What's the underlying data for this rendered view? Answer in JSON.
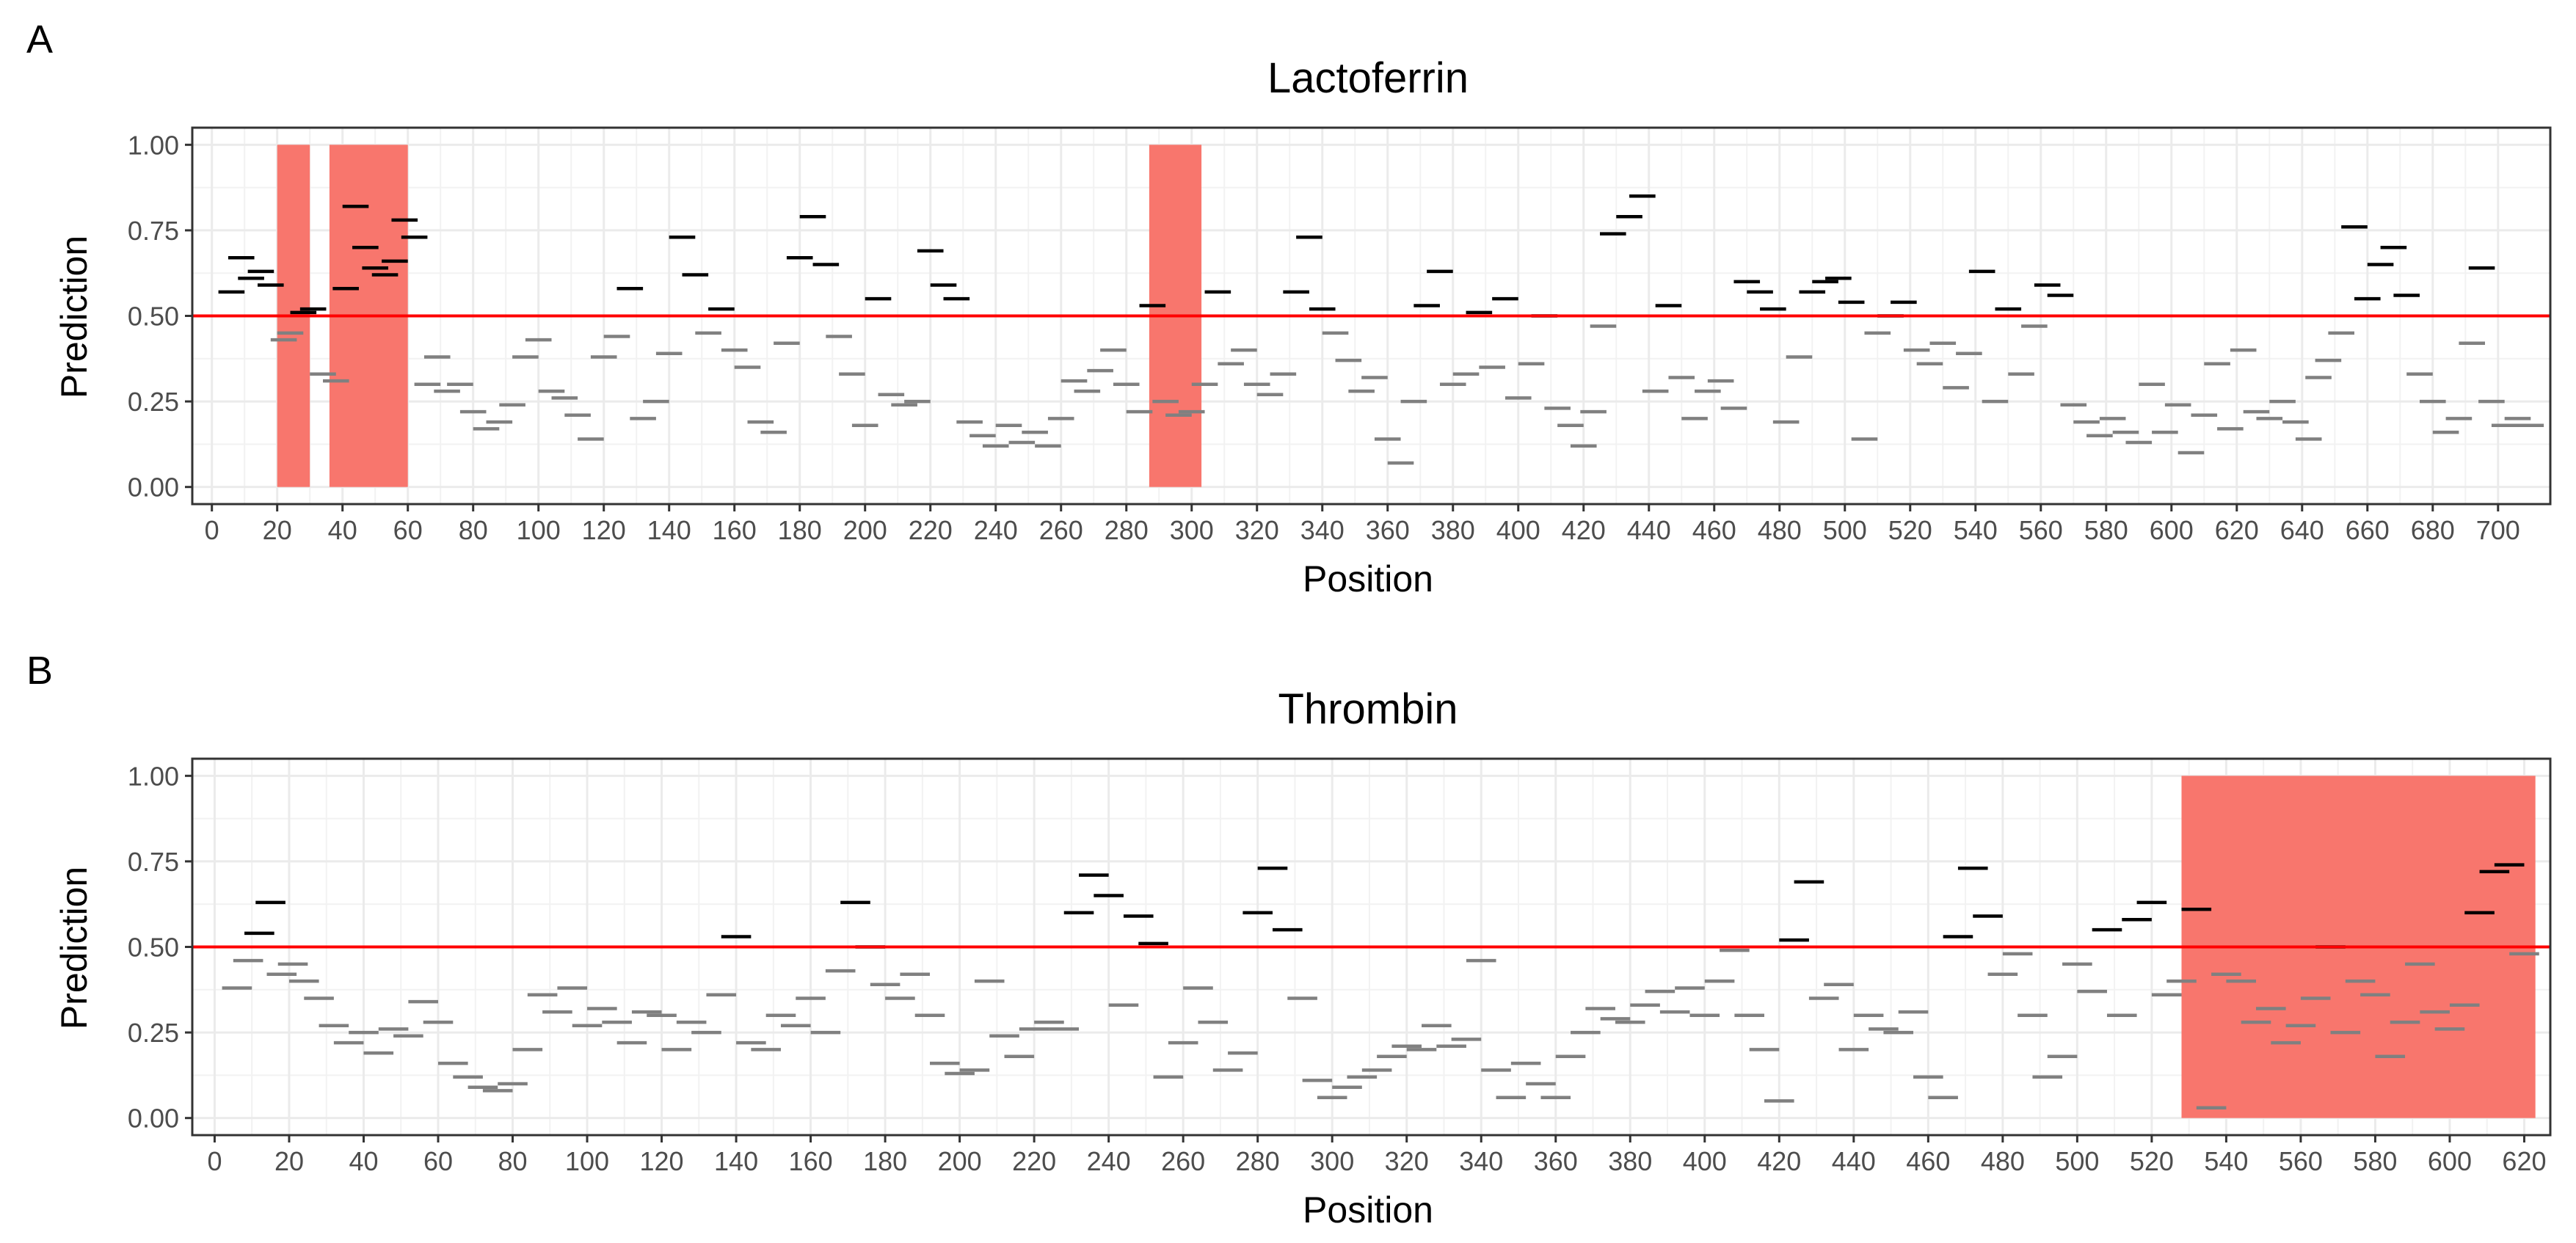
{
  "chart_data": [
    {
      "panel": "A",
      "type": "scatter",
      "title": "Lactoferrin",
      "xlabel": "Position",
      "ylabel": "Prediction",
      "xlim": [
        -6,
        716
      ],
      "ylim": [
        -0.05,
        1.05
      ],
      "x_ticks": [
        0,
        20,
        40,
        60,
        80,
        100,
        120,
        140,
        160,
        180,
        200,
        220,
        240,
        260,
        280,
        300,
        320,
        340,
        360,
        380,
        400,
        420,
        440,
        460,
        480,
        500,
        520,
        540,
        560,
        580,
        600,
        620,
        640,
        660,
        680,
        700
      ],
      "y_ticks": [
        0.0,
        0.25,
        0.5,
        0.75,
        1.0
      ],
      "y_tick_labels": [
        "0.00",
        "0.25",
        "0.50",
        "0.75",
        "1.00"
      ],
      "threshold": 0.5,
      "segment_length": 8,
      "highlight_regions": [
        [
          20,
          30
        ],
        [
          36,
          60
        ],
        [
          287,
          303
        ]
      ],
      "colors": {
        "above": "#000000",
        "below": "#808080",
        "threshold": "#ff0000",
        "region": "#f8766d"
      },
      "grid": true,
      "segment_starts": [
        2,
        5,
        8,
        11,
        14,
        18,
        20,
        24,
        27,
        30,
        34,
        37,
        40,
        43,
        46,
        49,
        52,
        55,
        58,
        62,
        65,
        68,
        72,
        76,
        80,
        84,
        88,
        92,
        96,
        100,
        104,
        108,
        112,
        116,
        120,
        124,
        128,
        132,
        136,
        140,
        144,
        148,
        152,
        156,
        160,
        164,
        168,
        172,
        176,
        180,
        184,
        188,
        192,
        196,
        200,
        204,
        208,
        212,
        216,
        220,
        224,
        228,
        232,
        236,
        240,
        244,
        248,
        252,
        256,
        260,
        264,
        268,
        272,
        276,
        280,
        284,
        288,
        292,
        296,
        300,
        304,
        308,
        312,
        316,
        320,
        324,
        328,
        332,
        336,
        340,
        344,
        348,
        352,
        356,
        360,
        364,
        368,
        372,
        376,
        380,
        384,
        388,
        392,
        396,
        400,
        404,
        408,
        412,
        416,
        419,
        422,
        425,
        430,
        434,
        438,
        442,
        446,
        450,
        454,
        458,
        462,
        466,
        470,
        474,
        478,
        482,
        486,
        490,
        494,
        498,
        502,
        506,
        510,
        514,
        518,
        522,
        526,
        530,
        534,
        538,
        542,
        546,
        550,
        554,
        558,
        562,
        566,
        570,
        574,
        578,
        582,
        586,
        590,
        594,
        598,
        602,
        606,
        610,
        614,
        618,
        622,
        626,
        630,
        634,
        638,
        641,
        644,
        648,
        652,
        656,
        660,
        664,
        668,
        672,
        676,
        680,
        684,
        688,
        691,
        694,
        698,
        702,
        706
      ],
      "segment_values": [
        0.57,
        0.67,
        0.61,
        0.63,
        0.59,
        0.43,
        0.45,
        0.51,
        0.52,
        0.33,
        0.31,
        0.58,
        0.82,
        0.7,
        0.64,
        0.62,
        0.66,
        0.78,
        0.73,
        0.3,
        0.38,
        0.28,
        0.3,
        0.22,
        0.17,
        0.19,
        0.24,
        0.38,
        0.43,
        0.28,
        0.26,
        0.21,
        0.14,
        0.38,
        0.44,
        0.58,
        0.2,
        0.25,
        0.39,
        0.73,
        0.62,
        0.45,
        0.52,
        0.4,
        0.35,
        0.19,
        0.16,
        0.42,
        0.67,
        0.79,
        0.65,
        0.44,
        0.33,
        0.18,
        0.55,
        0.27,
        0.24,
        0.25,
        0.69,
        0.59,
        0.55,
        0.19,
        0.15,
        0.12,
        0.18,
        0.13,
        0.16,
        0.12,
        0.2,
        0.31,
        0.28,
        0.34,
        0.4,
        0.3,
        0.22,
        0.53,
        0.25,
        0.21,
        0.22,
        0.3,
        0.57,
        0.36,
        0.4,
        0.3,
        0.27,
        0.33,
        0.57,
        0.73,
        0.52,
        0.45,
        0.37,
        0.28,
        0.32,
        0.14,
        0.07,
        0.25,
        0.53,
        0.63,
        0.3,
        0.33,
        0.51,
        0.35,
        0.55,
        0.26,
        0.36,
        0.5,
        0.23,
        0.18,
        0.12,
        0.22,
        0.47,
        0.74,
        0.79,
        0.85,
        0.28,
        0.53,
        0.32,
        0.2,
        0.28,
        0.31,
        0.23,
        0.6,
        0.57,
        0.52,
        0.19,
        0.38,
        0.57,
        0.6,
        0.61,
        0.54,
        0.14,
        0.45,
        0.5,
        0.54,
        0.4,
        0.36,
        0.42,
        0.29,
        0.39,
        0.63,
        0.25,
        0.52,
        0.33,
        0.47,
        0.59,
        0.56,
        0.24,
        0.19,
        0.15,
        0.2,
        0.16,
        0.13,
        0.3,
        0.16,
        0.24,
        0.1,
        0.21,
        0.36,
        0.17,
        0.4,
        0.22,
        0.2,
        0.25,
        0.19,
        0.14,
        0.32,
        0.37,
        0.45,
        0.76,
        0.55,
        0.65,
        0.7,
        0.56,
        0.33,
        0.25,
        0.16,
        0.2,
        0.42,
        0.64,
        0.25,
        0.18,
        0.2,
        0.18,
        0.72,
        0.75,
        0.74,
        0.38,
        0.51,
        0.16
      ]
    },
    {
      "panel": "B",
      "type": "scatter",
      "title": "Thrombin",
      "xlabel": "Position",
      "ylabel": "Prediction",
      "xlim": [
        -6,
        627
      ],
      "ylim": [
        -0.05,
        1.05
      ],
      "x_ticks": [
        0,
        20,
        40,
        60,
        80,
        100,
        120,
        140,
        160,
        180,
        200,
        220,
        240,
        260,
        280,
        300,
        320,
        340,
        360,
        380,
        400,
        420,
        440,
        460,
        480,
        500,
        520,
        540,
        560,
        580,
        600,
        620
      ],
      "y_ticks": [
        0.0,
        0.25,
        0.5,
        0.75,
        1.0
      ],
      "y_tick_labels": [
        "0.00",
        "0.25",
        "0.50",
        "0.75",
        "1.00"
      ],
      "threshold": 0.5,
      "segment_length": 8,
      "highlight_regions": [
        [
          528,
          623
        ]
      ],
      "colors": {
        "above": "#000000",
        "below": "#808080",
        "threshold": "#ff0000",
        "region": "#f8766d"
      },
      "grid": true,
      "segment_starts": [
        2,
        5,
        8,
        11,
        14,
        17,
        20,
        24,
        28,
        32,
        36,
        40,
        44,
        48,
        52,
        56,
        60,
        64,
        68,
        72,
        76,
        80,
        84,
        88,
        92,
        96,
        100,
        104,
        108,
        112,
        116,
        120,
        124,
        128,
        132,
        136,
        140,
        144,
        148,
        152,
        156,
        160,
        164,
        168,
        172,
        176,
        180,
        184,
        188,
        192,
        196,
        200,
        204,
        208,
        212,
        216,
        220,
        224,
        228,
        232,
        236,
        240,
        244,
        248,
        252,
        256,
        260,
        264,
        268,
        272,
        276,
        280,
        284,
        288,
        292,
        296,
        300,
        304,
        308,
        312,
        316,
        320,
        324,
        328,
        332,
        336,
        340,
        344,
        348,
        352,
        356,
        360,
        364,
        368,
        372,
        376,
        380,
        384,
        388,
        392,
        396,
        400,
        404,
        408,
        412,
        416,
        420,
        424,
        428,
        432,
        436,
        440,
        444,
        448,
        452,
        456,
        460,
        464,
        468,
        472,
        476,
        480,
        484,
        488,
        492,
        496,
        500,
        504,
        508,
        512,
        516,
        520,
        524,
        528,
        532,
        536,
        540,
        544,
        548,
        552,
        556,
        560,
        564,
        568,
        572,
        576,
        580,
        584,
        588,
        592,
        596,
        600,
        604,
        608,
        612,
        616
      ],
      "segment_values": [
        0.38,
        0.46,
        0.54,
        0.63,
        0.42,
        0.45,
        0.4,
        0.35,
        0.27,
        0.22,
        0.25,
        0.19,
        0.26,
        0.24,
        0.34,
        0.28,
        0.16,
        0.12,
        0.09,
        0.08,
        0.1,
        0.2,
        0.36,
        0.31,
        0.38,
        0.27,
        0.32,
        0.28,
        0.22,
        0.31,
        0.3,
        0.2,
        0.28,
        0.25,
        0.36,
        0.53,
        0.22,
        0.2,
        0.3,
        0.27,
        0.35,
        0.25,
        0.43,
        0.63,
        0.5,
        0.39,
        0.35,
        0.42,
        0.3,
        0.16,
        0.13,
        0.14,
        0.4,
        0.24,
        0.18,
        0.26,
        0.28,
        0.26,
        0.6,
        0.71,
        0.65,
        0.33,
        0.59,
        0.51,
        0.12,
        0.22,
        0.38,
        0.28,
        0.14,
        0.19,
        0.6,
        0.73,
        0.55,
        0.35,
        0.11,
        0.06,
        0.09,
        0.12,
        0.14,
        0.18,
        0.21,
        0.2,
        0.27,
        0.21,
        0.23,
        0.46,
        0.14,
        0.06,
        0.16,
        0.1,
        0.06,
        0.18,
        0.25,
        0.32,
        0.29,
        0.28,
        0.33,
        0.37,
        0.31,
        0.38,
        0.3,
        0.4,
        0.49,
        0.3,
        0.2,
        0.05,
        0.52,
        0.69,
        0.35,
        0.39,
        0.2,
        0.3,
        0.26,
        0.25,
        0.31,
        0.12,
        0.06,
        0.53,
        0.73,
        0.59,
        0.42,
        0.48,
        0.3,
        0.12,
        0.18,
        0.45,
        0.37,
        0.55,
        0.3,
        0.58,
        0.63,
        0.36,
        0.4,
        0.61,
        0.03,
        0.42,
        0.4,
        0.28,
        0.32,
        0.22,
        0.27,
        0.35,
        0.5,
        0.25,
        0.4,
        0.36,
        0.18,
        0.28,
        0.45,
        0.31,
        0.26,
        0.33,
        0.6,
        0.72,
        0.74,
        0.48
      ]
    }
  ]
}
